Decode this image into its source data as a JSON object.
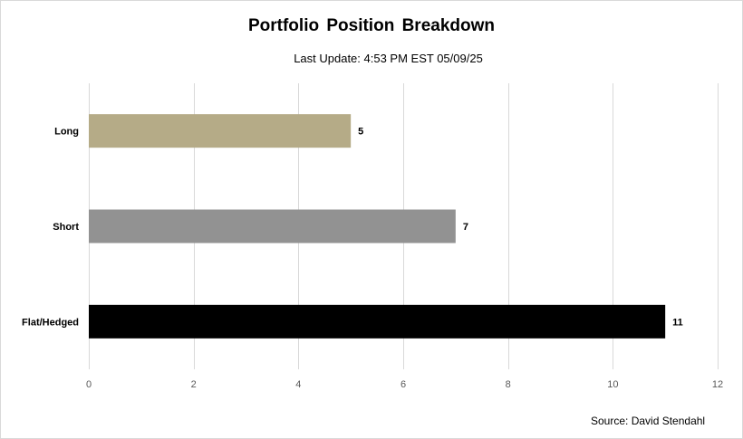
{
  "chart_data": {
    "type": "bar",
    "orientation": "horizontal",
    "title": "Portfolio Position Breakdown",
    "subtitle": "Last Update: 4:53  PM EST  05/09/25",
    "source": "Source:  David Stendahl",
    "categories": [
      "Long",
      "Short",
      "Flat/Hedged"
    ],
    "values": [
      5,
      7,
      11
    ],
    "colors": [
      "#b5ab87",
      "#929292",
      "#000000"
    ],
    "xlim": [
      0,
      12
    ],
    "x_ticks": [
      0,
      2,
      4,
      6,
      8,
      10,
      12
    ],
    "grid": true,
    "legend": "none",
    "data_labels": true
  }
}
